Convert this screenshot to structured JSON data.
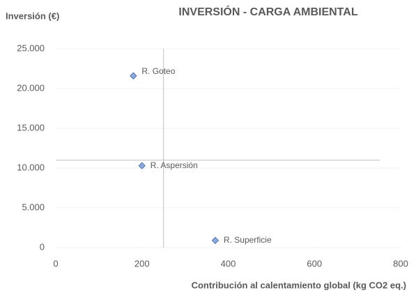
{
  "chart_data": {
    "type": "scatter",
    "title": "INVERSIÓN - CARGA AMBIENTAL",
    "y_label": "Inversión (€)",
    "x_label": "Contribución al calentamiento global (kg CO2 eq.)",
    "x": [
      180,
      200,
      370
    ],
    "values": [
      21600,
      10300,
      900
    ],
    "point_labels": [
      "R. Goteo",
      "R. Aspersión",
      "R. Superficie"
    ],
    "color": "#8faadc",
    "xlim": [
      0,
      800
    ],
    "xticks": [
      0,
      200,
      400,
      600,
      800
    ],
    "ylim": [
      0,
      25000
    ],
    "yticks": [
      0,
      {
        "value": 5000,
        "label": "5.000"
      },
      {
        "value": 10000,
        "label": "10.000"
      },
      {
        "value": 15000,
        "label": "15.000"
      },
      {
        "value": 20000,
        "label": "20.000"
      },
      {
        "value": 25000,
        "label": "25.000"
      }
    ],
    "grid": true,
    "reference_lines": {
      "x": 250,
      "y": 11000
    }
  }
}
